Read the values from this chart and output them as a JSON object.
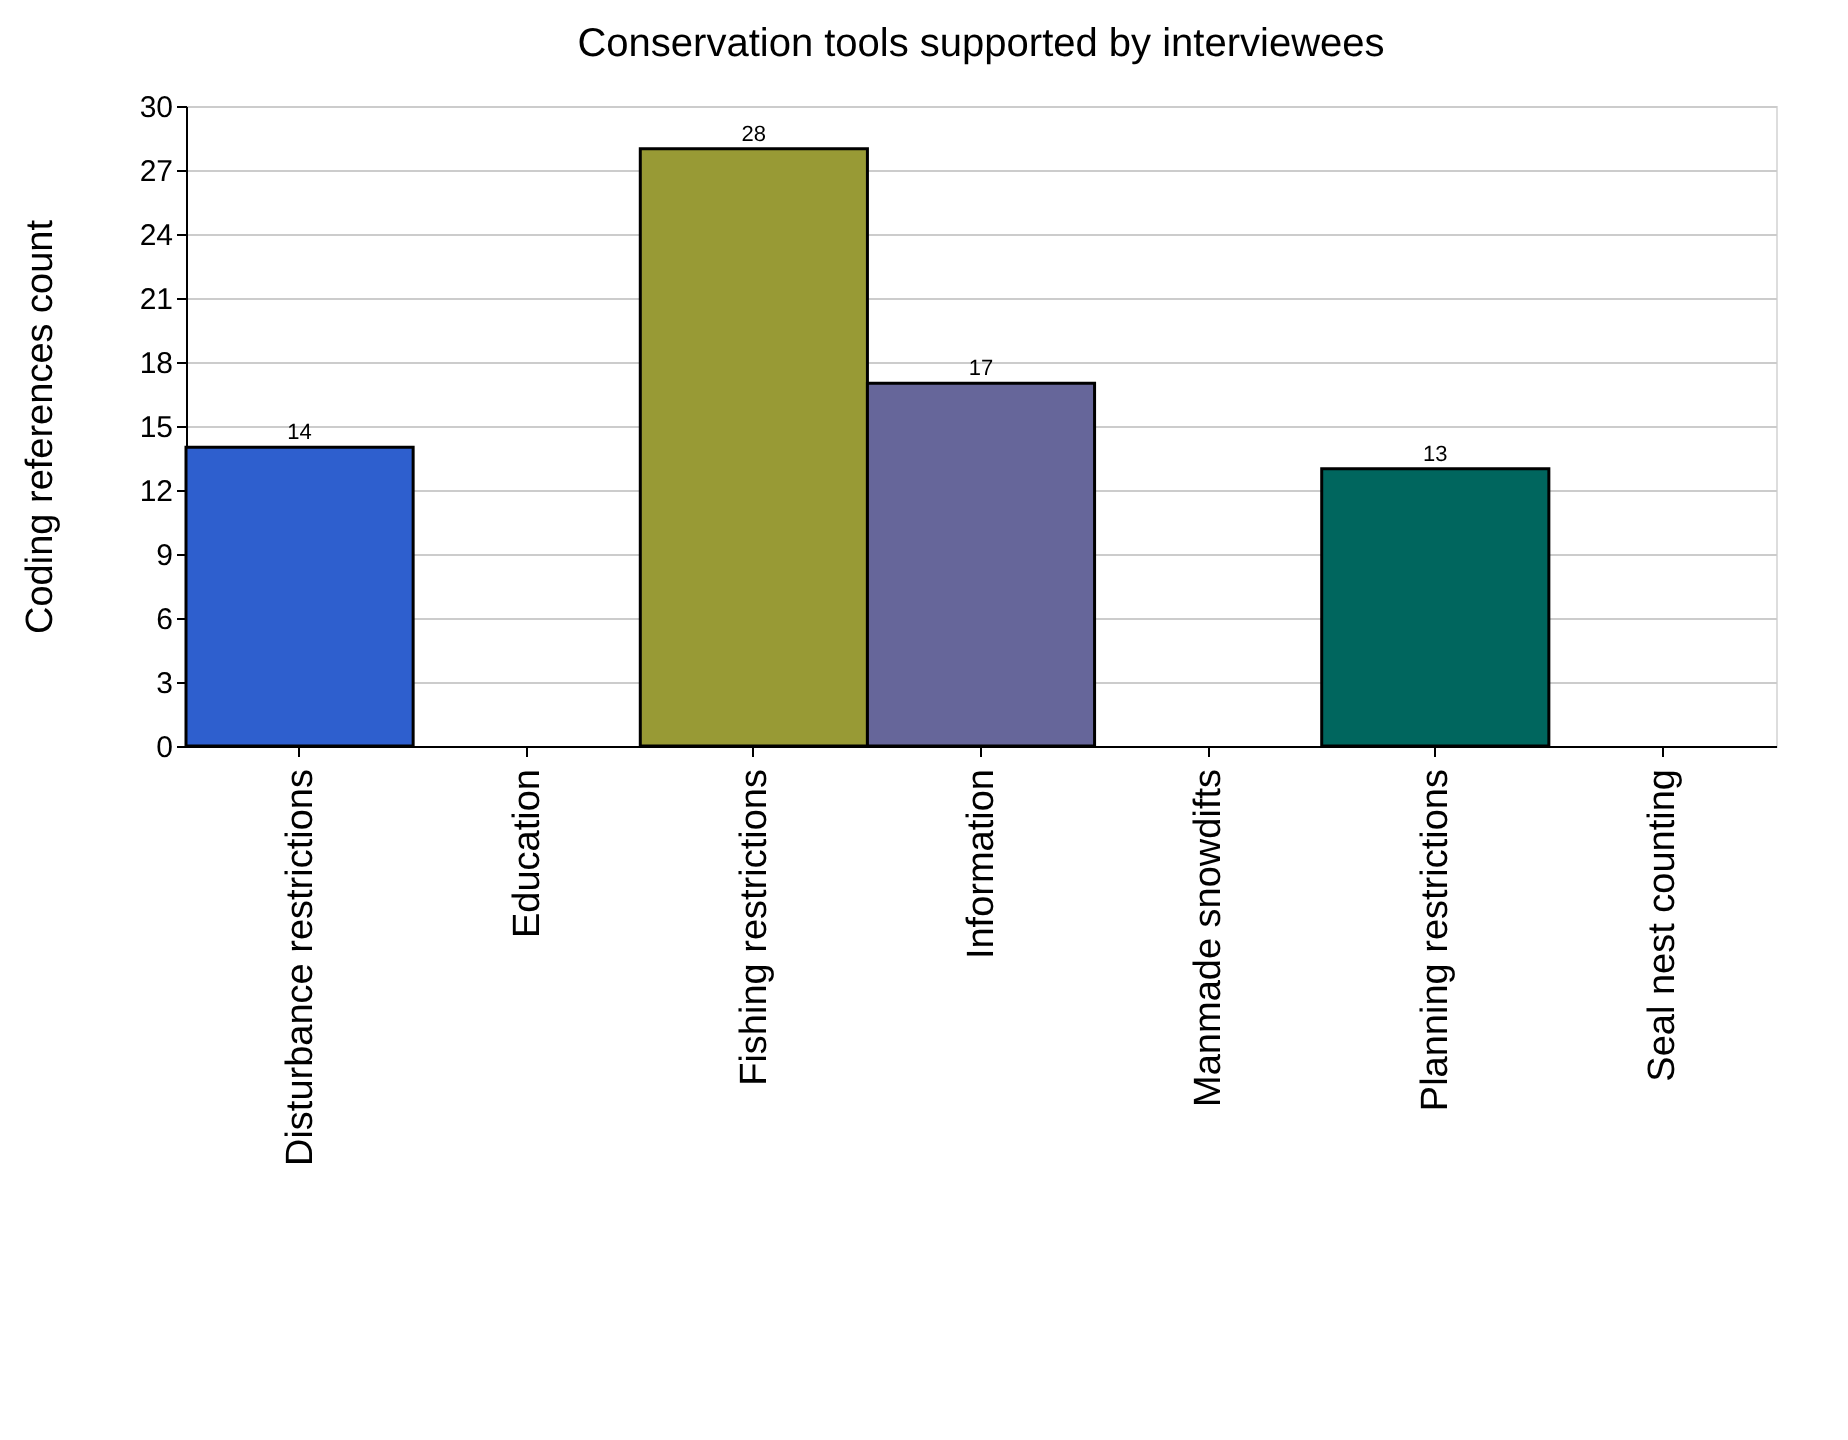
{
  "chart_data": {
    "type": "bar",
    "title": "Conservation tools supported by interviewees",
    "ylabel": "Coding references count",
    "categories": [
      "Disturbance restrictions",
      "Education",
      "Fishing restrictions",
      "Information",
      "Manmade snowdifts",
      "Planning restrictions",
      "Seal nest counting"
    ],
    "values": [
      14,
      0,
      28,
      17,
      0,
      13,
      0
    ],
    "value_labels": [
      "14",
      null,
      "28",
      "17",
      null,
      "13",
      null
    ],
    "colors": [
      "#2e5fce",
      null,
      "#989a35",
      "#66669a",
      null,
      "#00665e",
      null
    ],
    "ylim": [
      0,
      30
    ],
    "yticks": [
      0,
      3,
      6,
      9,
      12,
      15,
      18,
      21,
      24,
      27,
      30
    ],
    "grid": "y"
  }
}
